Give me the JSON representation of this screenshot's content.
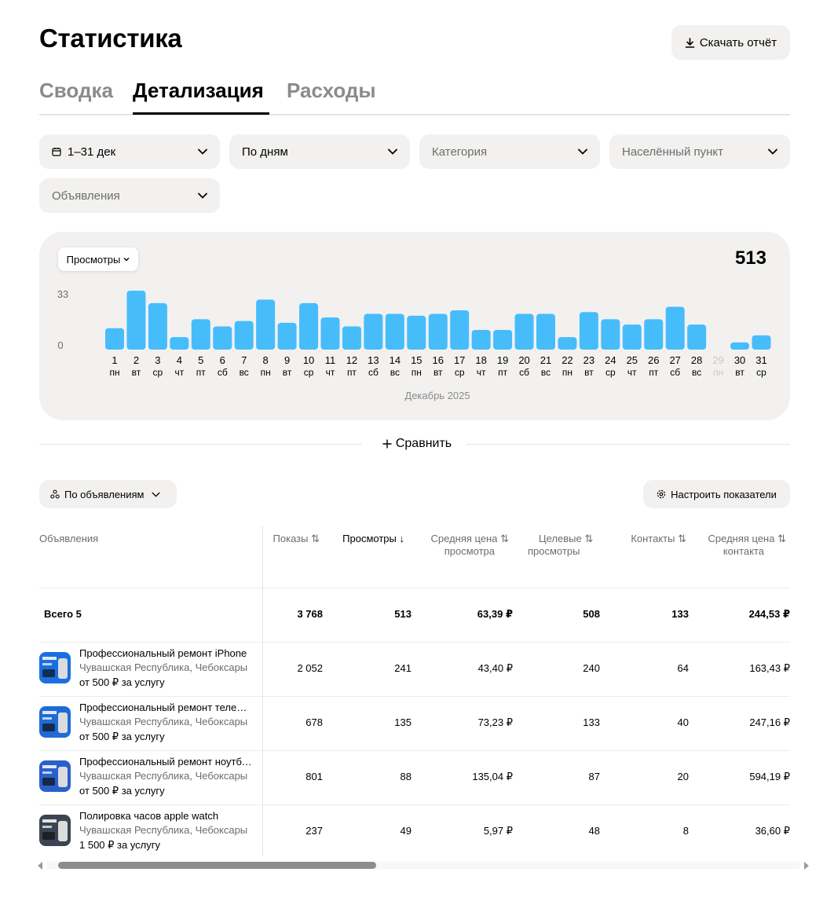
{
  "header": {
    "title": "Статистика",
    "download_label": "Скачать отчёт"
  },
  "tabs": [
    {
      "label": "Сводка",
      "active": false
    },
    {
      "label": "Детализация",
      "active": true
    },
    {
      "label": "Расходы",
      "active": false
    }
  ],
  "filters": {
    "date": "1–31 дек",
    "grouping": "По дням",
    "category_placeholder": "Категория",
    "city_placeholder": "Населённый пункт",
    "ads_placeholder": "Объявления"
  },
  "chart": {
    "metric_label": "Просмотры",
    "total": "513",
    "month_label": "Декабрь 2025"
  },
  "chart_data": {
    "type": "bar",
    "title": "",
    "xlabel": "Декабрь 2025",
    "ylabel": "",
    "ylim": [
      0,
      33
    ],
    "y_ticks": [
      "33",
      "0"
    ],
    "categories": [
      "1",
      "2",
      "3",
      "4",
      "5",
      "6",
      "7",
      "8",
      "9",
      "10",
      "11",
      "12",
      "13",
      "14",
      "15",
      "16",
      "17",
      "18",
      "19",
      "20",
      "21",
      "22",
      "23",
      "24",
      "25",
      "26",
      "27",
      "28",
      "29",
      "30",
      "31"
    ],
    "weekdays": [
      "пн",
      "вт",
      "ср",
      "чт",
      "пт",
      "сб",
      "вс",
      "пн",
      "вт",
      "ср",
      "чт",
      "пт",
      "сб",
      "вс",
      "пн",
      "вт",
      "ср",
      "чт",
      "пт",
      "сб",
      "вс",
      "пн",
      "вт",
      "ср",
      "чт",
      "пт",
      "сб",
      "вс",
      "пн",
      "вт",
      "ср"
    ],
    "values": [
      12,
      33,
      26,
      7,
      17,
      13,
      16,
      28,
      15,
      26,
      18,
      13,
      20,
      20,
      19,
      20,
      22,
      11,
      11,
      20,
      20,
      7,
      21,
      17,
      14,
      17,
      24,
      14,
      0,
      4,
      8
    ],
    "inactive_days": [
      "29"
    ],
    "bar_color": "#47bcfb",
    "grid": false
  },
  "compare": {
    "label": "Сравнить"
  },
  "table_controls": {
    "group_by": "По объявлениям",
    "settings": "Настроить показатели"
  },
  "table": {
    "headers": {
      "ads": "Объявления",
      "impressions": "Показы",
      "views": "Просмотры",
      "avg_view_price_1": "Средняя цена",
      "avg_view_price_2": "просмотра",
      "target_views_1": "Целевые",
      "target_views_2": "просмотры",
      "contacts": "Контакты",
      "avg_contact_price_1": "Средняя цена",
      "avg_contact_price_2": "контакта"
    },
    "total": {
      "label": "Всего 5",
      "impressions": "3 768",
      "views": "513",
      "avg_view_price": "63,39 ₽",
      "target_views": "508",
      "contacts": "133",
      "avg_contact_price": "244,53 ₽"
    },
    "rows": [
      {
        "title": "Профессиональный ремонт iPhone",
        "location": "Чувашская Республика, Чебоксары",
        "price": "от 500 ₽ за услугу",
        "impressions": "2 052",
        "views": "241",
        "avg_view_price": "43,40 ₽",
        "target_views": "240",
        "contacts": "64",
        "avg_contact_price": "163,43 ₽"
      },
      {
        "title": "Профессиональный ремонт телефонов",
        "location": "Чувашская Республика, Чебоксары",
        "price": "от 500 ₽ за услугу",
        "impressions": "678",
        "views": "135",
        "avg_view_price": "73,23 ₽",
        "target_views": "133",
        "contacts": "40",
        "avg_contact_price": "247,16 ₽"
      },
      {
        "title": "Профессиональный ремонт ноутбуков",
        "location": "Чувашская Республика, Чебоксары",
        "price": "от 500 ₽ за услугу",
        "impressions": "801",
        "views": "88",
        "avg_view_price": "135,04 ₽",
        "target_views": "87",
        "contacts": "20",
        "avg_contact_price": "594,19 ₽"
      },
      {
        "title": "Полировка часов apple watch",
        "location": "Чувашская Республика, Чебоксары",
        "price": "1 500 ₽ за услугу",
        "impressions": "237",
        "views": "49",
        "avg_view_price": "5,97 ₽",
        "target_views": "48",
        "contacts": "8",
        "avg_contact_price": "36,60 ₽"
      }
    ]
  }
}
